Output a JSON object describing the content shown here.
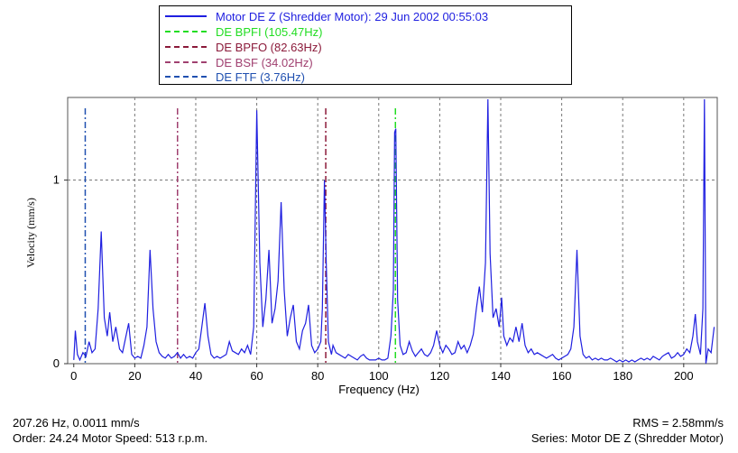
{
  "chart_data": {
    "type": "line",
    "xlabel": "Frequency (Hz)",
    "ylabel": "Velocity (mm/s)",
    "xlim": [
      -2,
      211
    ],
    "ylim": [
      0,
      1.45
    ],
    "x_ticks": [
      0,
      20,
      40,
      60,
      80,
      100,
      120,
      140,
      160,
      180,
      200
    ],
    "x_tick_labels": [
      "0",
      "20",
      "40",
      "60",
      "80",
      "100",
      "120",
      "140",
      "160",
      "180",
      "200"
    ],
    "y_ticks": [
      0,
      1
    ],
    "y_tick_labels": [
      "0",
      "1"
    ],
    "grid": true,
    "legend_position": "top-center",
    "series": [
      {
        "name": "Motor DE Z (Shredder Motor): 29 Jun 2002  00:55:03",
        "color": "#1f1fe0",
        "style": "solid",
        "points": [
          [
            0,
            0.02
          ],
          [
            0.5,
            0.18
          ],
          [
            1.2,
            0.05
          ],
          [
            2,
            0.02
          ],
          [
            3,
            0.06
          ],
          [
            4,
            0.04
          ],
          [
            5,
            0.12
          ],
          [
            6,
            0.06
          ],
          [
            7,
            0.08
          ],
          [
            8,
            0.3
          ],
          [
            9,
            0.72
          ],
          [
            10,
            0.25
          ],
          [
            11,
            0.15
          ],
          [
            11.8,
            0.28
          ],
          [
            12.8,
            0.12
          ],
          [
            13.8,
            0.2
          ],
          [
            15,
            0.08
          ],
          [
            16,
            0.06
          ],
          [
            17,
            0.14
          ],
          [
            18,
            0.22
          ],
          [
            19,
            0.05
          ],
          [
            20,
            0.03
          ],
          [
            21,
            0.04
          ],
          [
            22,
            0.03
          ],
          [
            23,
            0.1
          ],
          [
            24,
            0.2
          ],
          [
            25,
            0.62
          ],
          [
            26,
            0.3
          ],
          [
            27,
            0.12
          ],
          [
            28,
            0.06
          ],
          [
            29,
            0.04
          ],
          [
            30,
            0.03
          ],
          [
            31,
            0.05
          ],
          [
            32,
            0.03
          ],
          [
            33,
            0.04
          ],
          [
            34,
            0.06
          ],
          [
            35,
            0.03
          ],
          [
            36,
            0.05
          ],
          [
            37,
            0.03
          ],
          [
            38,
            0.04
          ],
          [
            39,
            0.03
          ],
          [
            40,
            0.06
          ],
          [
            41,
            0.08
          ],
          [
            42,
            0.2
          ],
          [
            43,
            0.33
          ],
          [
            44,
            0.15
          ],
          [
            45,
            0.05
          ],
          [
            46,
            0.03
          ],
          [
            47,
            0.04
          ],
          [
            48,
            0.03
          ],
          [
            49,
            0.04
          ],
          [
            50,
            0.05
          ],
          [
            51,
            0.12
          ],
          [
            52,
            0.07
          ],
          [
            53,
            0.06
          ],
          [
            54,
            0.05
          ],
          [
            55,
            0.08
          ],
          [
            56,
            0.06
          ],
          [
            57,
            0.1
          ],
          [
            58,
            0.05
          ],
          [
            59,
            0.2
          ],
          [
            60,
            1.38
          ],
          [
            61,
            0.55
          ],
          [
            62,
            0.2
          ],
          [
            63,
            0.35
          ],
          [
            64,
            0.62
          ],
          [
            65,
            0.22
          ],
          [
            66,
            0.3
          ],
          [
            67,
            0.45
          ],
          [
            68,
            0.88
          ],
          [
            69,
            0.4
          ],
          [
            70,
            0.15
          ],
          [
            71,
            0.25
          ],
          [
            72,
            0.32
          ],
          [
            73,
            0.12
          ],
          [
            74,
            0.08
          ],
          [
            75,
            0.18
          ],
          [
            76,
            0.22
          ],
          [
            77,
            0.32
          ],
          [
            78,
            0.1
          ],
          [
            79,
            0.06
          ],
          [
            80,
            0.08
          ],
          [
            81,
            0.12
          ],
          [
            81.5,
            0.3
          ],
          [
            82.2,
            1.0
          ],
          [
            82.8,
            0.55
          ],
          [
            83.5,
            0.12
          ],
          [
            84.5,
            0.05
          ],
          [
            85,
            0.1
          ],
          [
            86,
            0.06
          ],
          [
            87,
            0.05
          ],
          [
            88,
            0.04
          ],
          [
            89,
            0.03
          ],
          [
            90,
            0.05
          ],
          [
            91,
            0.04
          ],
          [
            92,
            0.03
          ],
          [
            93,
            0.02
          ],
          [
            94,
            0.04
          ],
          [
            95,
            0.05
          ],
          [
            96,
            0.03
          ],
          [
            97,
            0.02
          ],
          [
            98,
            0.02
          ],
          [
            99,
            0.02
          ],
          [
            100,
            0.03
          ],
          [
            101,
            0.02
          ],
          [
            102,
            0.02
          ],
          [
            103,
            0.03
          ],
          [
            104,
            0.15
          ],
          [
            104.8,
            0.4
          ],
          [
            105.2,
            1.26
          ],
          [
            105.6,
            1.28
          ],
          [
            106.2,
            0.35
          ],
          [
            107,
            0.1
          ],
          [
            108,
            0.05
          ],
          [
            109,
            0.06
          ],
          [
            110,
            0.12
          ],
          [
            111,
            0.07
          ],
          [
            112,
            0.04
          ],
          [
            113,
            0.06
          ],
          [
            114,
            0.08
          ],
          [
            115,
            0.05
          ],
          [
            116,
            0.04
          ],
          [
            117,
            0.06
          ],
          [
            118,
            0.1
          ],
          [
            119,
            0.18
          ],
          [
            120,
            0.1
          ],
          [
            121,
            0.06
          ],
          [
            122,
            0.1
          ],
          [
            123,
            0.08
          ],
          [
            124,
            0.05
          ],
          [
            125,
            0.06
          ],
          [
            126,
            0.12
          ],
          [
            127,
            0.08
          ],
          [
            128,
            0.1
          ],
          [
            129,
            0.06
          ],
          [
            130,
            0.1
          ],
          [
            131,
            0.16
          ],
          [
            132,
            0.3
          ],
          [
            133,
            0.42
          ],
          [
            134,
            0.28
          ],
          [
            135,
            0.55
          ],
          [
            135.8,
            1.44
          ],
          [
            136.5,
            0.6
          ],
          [
            137.5,
            0.25
          ],
          [
            138.5,
            0.3
          ],
          [
            139.5,
            0.2
          ],
          [
            140.3,
            0.36
          ],
          [
            141,
            0.15
          ],
          [
            142,
            0.1
          ],
          [
            143,
            0.14
          ],
          [
            144,
            0.12
          ],
          [
            145,
            0.2
          ],
          [
            146,
            0.12
          ],
          [
            147,
            0.22
          ],
          [
            148,
            0.1
          ],
          [
            149,
            0.06
          ],
          [
            150,
            0.08
          ],
          [
            151,
            0.05
          ],
          [
            152,
            0.06
          ],
          [
            153,
            0.05
          ],
          [
            154,
            0.04
          ],
          [
            155,
            0.03
          ],
          [
            156,
            0.04
          ],
          [
            157,
            0.05
          ],
          [
            158,
            0.03
          ],
          [
            159,
            0.02
          ],
          [
            160,
            0.03
          ],
          [
            161,
            0.04
          ],
          [
            162,
            0.05
          ],
          [
            163,
            0.08
          ],
          [
            164,
            0.2
          ],
          [
            165,
            0.62
          ],
          [
            166,
            0.15
          ],
          [
            167,
            0.05
          ],
          [
            168,
            0.03
          ],
          [
            169,
            0.04
          ],
          [
            170,
            0.02
          ],
          [
            171,
            0.03
          ],
          [
            172,
            0.02
          ],
          [
            173,
            0.03
          ],
          [
            174,
            0.02
          ],
          [
            175,
            0.02
          ],
          [
            176,
            0.03
          ],
          [
            177,
            0.02
          ],
          [
            178,
            0.01
          ],
          [
            179,
            0.02
          ],
          [
            180,
            0.01
          ],
          [
            181,
            0.02
          ],
          [
            182,
            0.01
          ],
          [
            183,
            0.02
          ],
          [
            184,
            0.01
          ],
          [
            185,
            0.02
          ],
          [
            186,
            0.03
          ],
          [
            187,
            0.02
          ],
          [
            188,
            0.03
          ],
          [
            189,
            0.02
          ],
          [
            190,
            0.04
          ],
          [
            191,
            0.03
          ],
          [
            192,
            0.02
          ],
          [
            193,
            0.04
          ],
          [
            194,
            0.05
          ],
          [
            195,
            0.06
          ],
          [
            196,
            0.03
          ],
          [
            197,
            0.04
          ],
          [
            198,
            0.06
          ],
          [
            199,
            0.04
          ],
          [
            200,
            0.05
          ],
          [
            201,
            0.08
          ],
          [
            202,
            0.06
          ],
          [
            203,
            0.15
          ],
          [
            203.8,
            0.27
          ],
          [
            204.5,
            0.12
          ],
          [
            205.5,
            0.05
          ],
          [
            206.3,
            0.3
          ],
          [
            206.8,
            1.44
          ],
          [
            207.26,
            0.0011
          ],
          [
            208,
            0.08
          ],
          [
            209,
            0.06
          ],
          [
            210,
            0.2
          ]
        ]
      },
      {
        "name": "DE BPFI (105.47Hz)",
        "color": "#22dd22",
        "style": "dashed",
        "x": 105.47
      },
      {
        "name": "DE BPFO (82.63Hz)",
        "color": "#8b1a3a",
        "style": "dashed",
        "x": 82.63
      },
      {
        "name": "DE BSF (34.02Hz)",
        "color": "#a04070",
        "style": "dashed",
        "x": 34.02
      },
      {
        "name": "DE FTF (3.76Hz)",
        "color": "#2050b0",
        "style": "dashed",
        "x": 3.76
      }
    ]
  },
  "readout": {
    "cursor": "207.26 Hz, 0.0011 mm/s",
    "order": "Order: 24.24   Motor Speed:  513 r.p.m.",
    "rms": "RMS = 2.58mm/s",
    "series": "Series: Motor DE Z (Shredder Motor)"
  }
}
